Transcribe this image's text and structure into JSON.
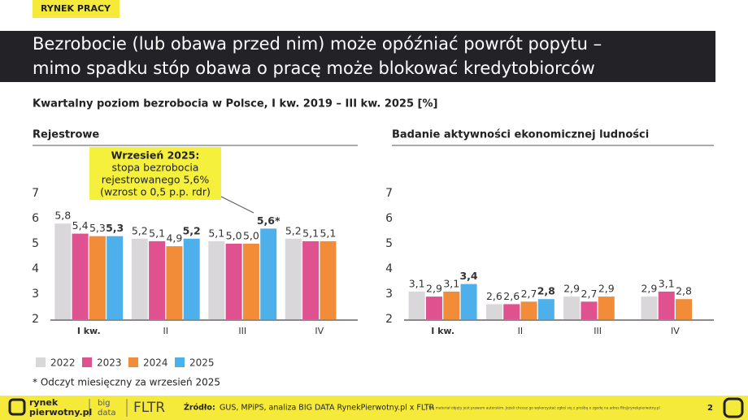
{
  "tag": "RYNEK PRACY",
  "title": [
    "Bezrobocie (lub obawa przed nim) może opóźniać powrót popytu –",
    "mimo spadku stóp obawa o pracę może blokować kredytobiorców"
  ],
  "subtitle": "Kwartalny poziom bezrobocia w Polsce, I kw. 2019 – III kw. 2025 [%]",
  "chart_data": [
    {
      "type": "bar",
      "title": "Rejestrowe",
      "categories": [
        "I kw.",
        "II",
        "III",
        "IV"
      ],
      "ylim": [
        2,
        7
      ],
      "yticks": [
        2,
        3,
        4,
        5,
        6,
        7
      ],
      "annotation": {
        "title": "Wrzesień 2025:",
        "lines": [
          "stopa bezrobocia",
          "rejestrowanego 5,6%",
          "(wzrost o 0,5 p.p. rdr)"
        ]
      },
      "series": [
        {
          "name": "2022",
          "color": "#dad7da",
          "values": [
            5.8,
            5.2,
            5.1,
            5.2
          ],
          "value_labels": [
            "5,8",
            "5,2",
            "5,1",
            "5,2"
          ]
        },
        {
          "name": "2023",
          "color": "#e0528f",
          "values": [
            5.4,
            5.1,
            5.0,
            5.1
          ],
          "value_labels": [
            "5,4",
            "5,1",
            "5,0",
            "5,1"
          ]
        },
        {
          "name": "2024",
          "color": "#f28c38",
          "values": [
            5.3,
            4.9,
            5.0,
            5.1
          ],
          "value_labels": [
            "5,3",
            "4,9",
            "5,0",
            "5,1"
          ]
        },
        {
          "name": "2025",
          "color": "#4db0ea",
          "values": [
            5.3,
            5.2,
            5.6,
            null
          ],
          "value_labels": [
            "5,3",
            "5,2",
            "5,6*",
            null
          ]
        }
      ]
    },
    {
      "type": "bar",
      "title": "Badanie aktywności ekonomicznej ludności",
      "categories": [
        "I kw.",
        "II",
        "III",
        "IV"
      ],
      "ylim": [
        2,
        7
      ],
      "yticks": [
        2,
        3,
        4,
        5,
        6,
        7
      ],
      "series": [
        {
          "color": "#dad7da",
          "values": [
            3.1,
            2.6,
            2.9,
            2.9
          ],
          "value_labels": [
            "3,1",
            "2,6",
            "2,9",
            "2,9"
          ]
        },
        {
          "color": "#e0528f",
          "values": [
            2.9,
            2.6,
            2.7,
            3.1
          ],
          "value_labels": [
            "2,9",
            "2,6",
            "2,7",
            "3,1"
          ]
        },
        {
          "color": "#f28c38",
          "values": [
            3.1,
            2.7,
            2.9,
            2.8
          ],
          "value_labels": [
            "3,1",
            "2,7",
            "2,9",
            "2,8"
          ]
        },
        {
          "color": "#4db0ea",
          "values": [
            3.4,
            2.8,
            null,
            null
          ],
          "value_labels": [
            "3,4",
            "2,8",
            null,
            null
          ]
        }
      ]
    }
  ],
  "footnote": "* Odczyt miesięczny za wrzesień 2025",
  "footer": {
    "logo": [
      "rynek",
      "pierwotny.pl"
    ],
    "logo2": [
      "big",
      "data"
    ],
    "logo3": "FLTR",
    "source_label": "Źródło:",
    "source": "GUS, MPiPS, analiza BIG DATA RynekPierwotny.pl x FLTR",
    "disclaimer": "Ten materiał objęty jest prawem autorskim. Jeżeli chcesz go wykorzystać zgłoś się z prośbą o zgodę na adres fltr@rynekpierwotny.pl",
    "page": "2"
  }
}
